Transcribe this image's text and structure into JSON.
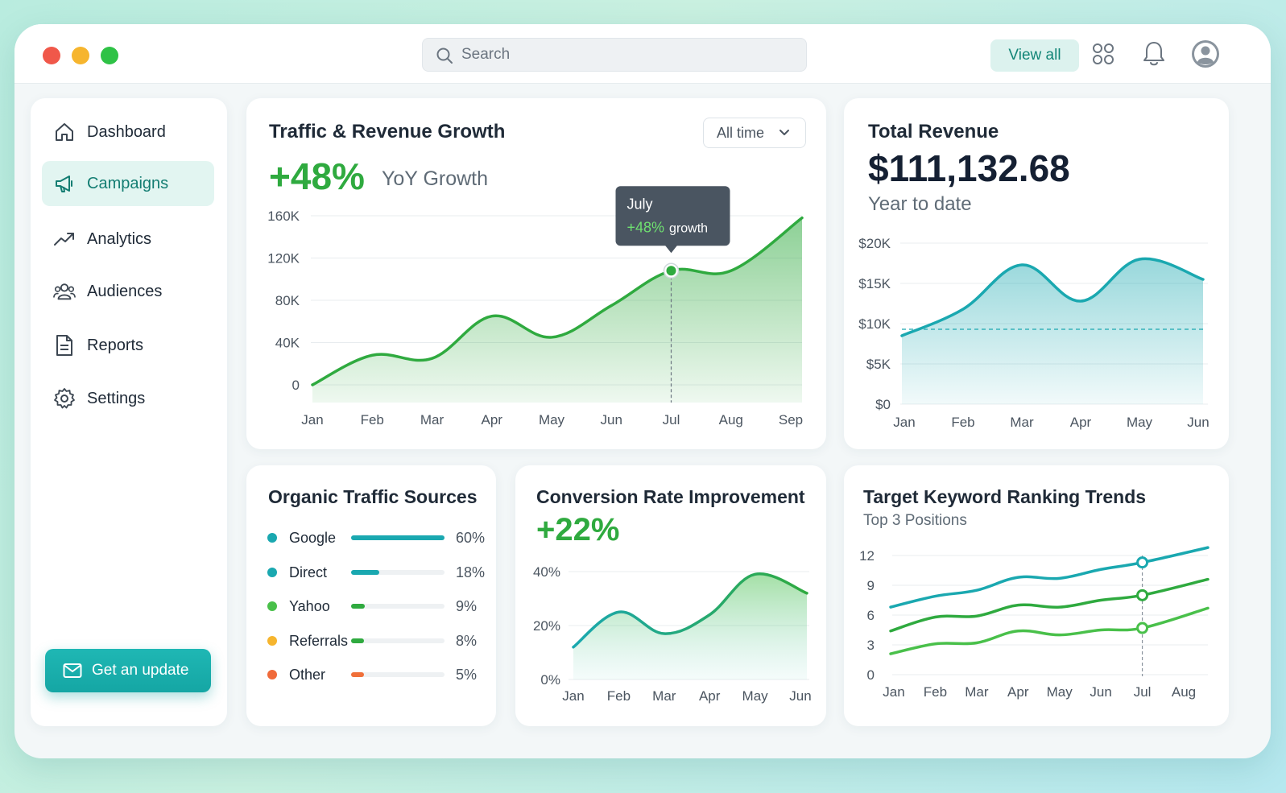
{
  "search": {
    "placeholder": "Search"
  },
  "header": {
    "view_all_label": "View all"
  },
  "sidebar": {
    "items": [
      {
        "label": "Dashboard",
        "icon": "home-icon",
        "active": false
      },
      {
        "label": "Campaigns",
        "icon": "megaphone-icon",
        "active": true
      },
      {
        "label": "Analytics",
        "icon": "trend-icon",
        "active": false
      },
      {
        "label": "Audiences",
        "icon": "users-icon",
        "active": false
      },
      {
        "label": "Reports",
        "icon": "document-icon",
        "active": false
      },
      {
        "label": "Settings",
        "icon": "gear-icon",
        "active": false
      }
    ],
    "cta_label": "Get an update",
    "cta_icon": "mail-icon"
  },
  "traffic": {
    "title": "Traffic & Revenue Growth",
    "growth": "+48%",
    "growth_label": "YoY Growth",
    "filter": "All time",
    "tooltip": {
      "month": "July",
      "value": "+48%",
      "suffix": "growth"
    }
  },
  "revenue": {
    "title": "Total Revenue",
    "amount": "$111,132.68",
    "subtitle": "Year to date"
  },
  "sources": {
    "title": "Organic Traffic Sources",
    "items": [
      {
        "name": "Google",
        "pct": "60%",
        "value": 60,
        "color": "#1aa8b0"
      },
      {
        "name": "Direct",
        "pct": "18%",
        "value": 18,
        "color": "#1aa8b0"
      },
      {
        "name": "Yahoo",
        "pct": "9%",
        "value": 9,
        "color": "#2faa3f"
      },
      {
        "name": "Referrals",
        "pct": "8%",
        "value": 8,
        "color": "#2faa3f"
      },
      {
        "name": "Other",
        "pct": "5%",
        "value": 5,
        "color": "#f0703a"
      }
    ],
    "dot_colors": [
      "#1aa8b0",
      "#1aa8b0",
      "#49c04a",
      "#f6b52e",
      "#f06a3a"
    ]
  },
  "conversion": {
    "title": "Conversion Rate Improvement",
    "value": "+22%"
  },
  "keywords": {
    "title": "Target Keyword Ranking Trends",
    "subtitle": "Top 3 Positions"
  },
  "chart_data": [
    {
      "type": "area",
      "title": "Traffic & Revenue Growth",
      "categories": [
        "Jan",
        "Feb",
        "Mar",
        "Apr",
        "May",
        "Jun",
        "Jul",
        "Aug",
        "Sep"
      ],
      "yticks": [
        "0",
        "40K",
        "80K",
        "120K",
        "160K"
      ],
      "ylim": [
        0,
        160000
      ],
      "series": [
        {
          "values": [
            0,
            28000,
            25000,
            65000,
            45000,
            75000,
            108000,
            108000,
            158000
          ]
        }
      ],
      "annotation": {
        "x": "Jul",
        "y": 108000,
        "text": "+48% growth"
      },
      "grid": true,
      "color": "#2faa3f"
    },
    {
      "type": "area",
      "title": "Total Revenue",
      "categories": [
        "Jan",
        "Feb",
        "Mar",
        "Apr",
        "May",
        "Jun"
      ],
      "yticks": [
        "$0",
        "$5K",
        "$10K",
        "$15K",
        "$20K"
      ],
      "ylim": [
        0,
        20000
      ],
      "series": [
        {
          "values": [
            8500,
            11800,
            17300,
            12800,
            18000,
            15500
          ]
        }
      ],
      "reference_line": 9300,
      "grid": true,
      "color": "#1aa8b0"
    },
    {
      "type": "area",
      "title": "Conversion Rate Improvement",
      "categories": [
        "Jan",
        "Feb",
        "Mar",
        "Apr",
        "May",
        "Jun"
      ],
      "yticks": [
        "0%",
        "20%",
        "40%"
      ],
      "ylim": [
        0,
        40
      ],
      "series": [
        {
          "values": [
            12,
            25,
            17,
            24,
            39,
            32
          ]
        }
      ],
      "grid": true,
      "color": "#2faa3f"
    },
    {
      "type": "line",
      "title": "Target Keyword Ranking Trends",
      "categories": [
        "Jan",
        "Feb",
        "Mar",
        "Apr",
        "May",
        "Jun",
        "Jul",
        "Aug"
      ],
      "yticks": [
        "0",
        "3",
        "6",
        "9",
        "12"
      ],
      "ylim": [
        0,
        12
      ],
      "series": [
        {
          "values": [
            6.8,
            7.9,
            8.5,
            9.8,
            9.7,
            10.6,
            11.3,
            12.8
          ],
          "color": "#1aa8b0"
        },
        {
          "values": [
            4.4,
            5.8,
            5.9,
            7.0,
            6.8,
            7.5,
            8.0,
            9.6
          ],
          "color": "#2faa3f"
        },
        {
          "values": [
            2.1,
            3.1,
            3.2,
            4.4,
            4.0,
            4.5,
            4.7,
            6.7
          ],
          "color": "#49c04a"
        }
      ],
      "marker_at": "Jul",
      "grid": true
    }
  ]
}
